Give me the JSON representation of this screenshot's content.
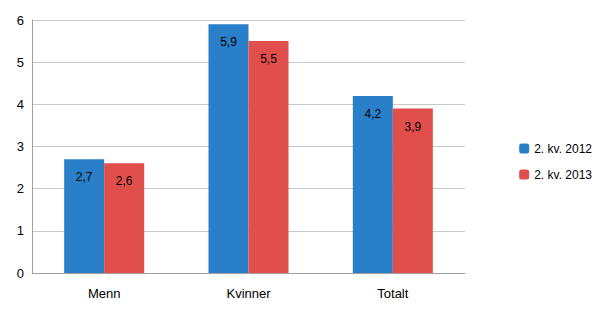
{
  "chart_data": {
    "type": "bar",
    "categories": [
      "Menn",
      "Kvinner",
      "Totalt"
    ],
    "series": [
      {
        "name": "2. kv. 2012",
        "color": "#2a7fc9",
        "values": [
          2.7,
          5.9,
          4.2
        ],
        "value_labels": [
          "2,7",
          "5,9",
          "4,2"
        ]
      },
      {
        "name": "2. kv. 2013",
        "color": "#e04f4c",
        "values": [
          2.6,
          5.5,
          3.9
        ],
        "value_labels": [
          "2,6",
          "5,5",
          "3,9"
        ]
      }
    ],
    "ylim": [
      0,
      6
    ],
    "yticks": [
      0,
      1,
      2,
      3,
      4,
      5,
      6
    ],
    "grid": true,
    "legend": "right",
    "data_labels": true
  }
}
